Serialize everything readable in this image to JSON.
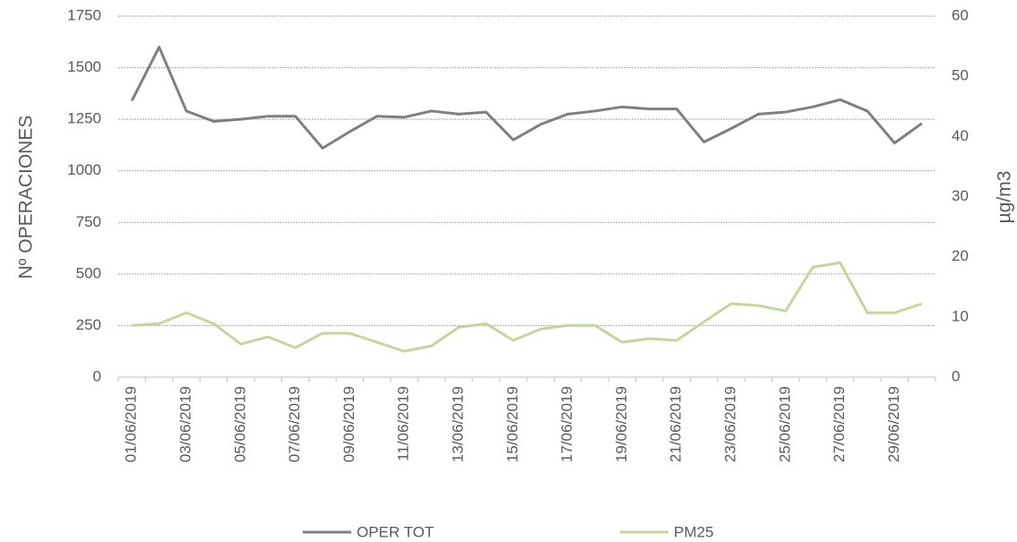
{
  "chart_data": {
    "type": "line",
    "y_label": "Nº OPERACIONES",
    "y2_label": "µg/m3",
    "categories": [
      "01/06/2019",
      null,
      "03/06/2019",
      null,
      "05/06/2019",
      null,
      "07/06/2019",
      null,
      "09/06/2019",
      null,
      "11/06/2019",
      null,
      "13/06/2019",
      null,
      "15/06/2019",
      null,
      "17/06/2019",
      null,
      "19/06/2019",
      null,
      "21/06/2019",
      null,
      "23/06/2019",
      null,
      "25/06/2019",
      null,
      "27/06/2019",
      null,
      "29/06/2019",
      null
    ],
    "series": [
      {
        "name": "OPER TOT",
        "color": "#7f7f7f",
        "axis": "y",
        "values": [
          1340,
          1600,
          1290,
          1240,
          1250,
          1265,
          1265,
          1110,
          1190,
          1265,
          1260,
          1290,
          1275,
          1285,
          1150,
          1225,
          1275,
          1290,
          1310,
          1300,
          1300,
          1140,
          1205,
          1275,
          1285,
          1310,
          1345,
          1290,
          1135,
          1230
        ]
      },
      {
        "name": "PM25",
        "color": "#c4d79b",
        "axis": "y2",
        "values": [
          8.6,
          8.9,
          10.7,
          8.9,
          5.5,
          6.7,
          4.9,
          7.3,
          7.3,
          5.8,
          4.3,
          5.2,
          8.3,
          8.9,
          6.1,
          8.0,
          8.6,
          8.6,
          5.8,
          6.4,
          6.1,
          9.2,
          12.2,
          11.9,
          11.0,
          18.3,
          19.0,
          10.7,
          10.7,
          12.2
        ]
      }
    ],
    "ylim": [
      0,
      1750
    ],
    "yticks": [
      0,
      250,
      500,
      750,
      1000,
      1250,
      1500,
      1750
    ],
    "y2lim": [
      0,
      60
    ],
    "y2ticks": [
      0,
      10,
      20,
      30,
      40,
      50,
      60
    ],
    "grid": true,
    "legend": "bottom"
  }
}
